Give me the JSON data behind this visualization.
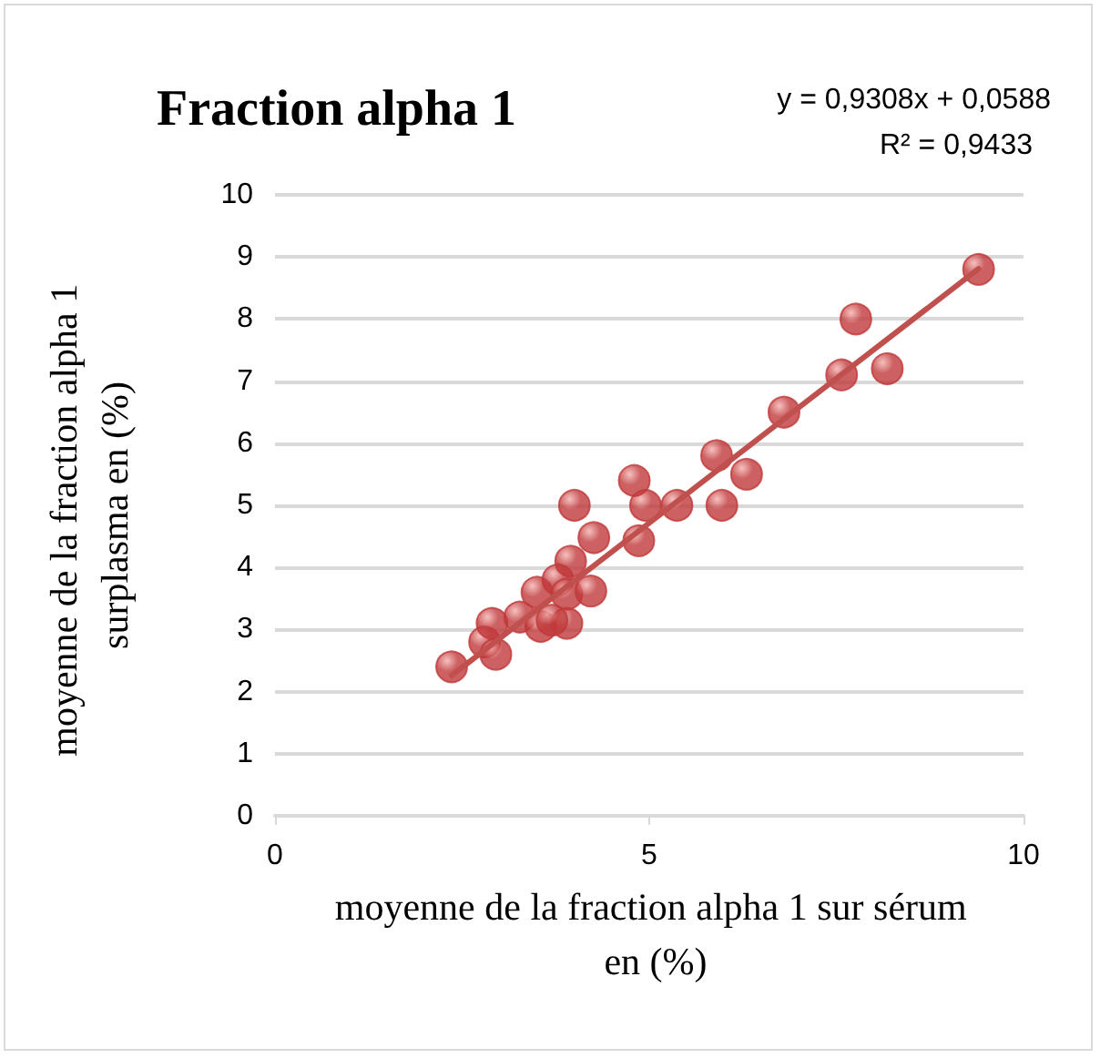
{
  "chart_data": {
    "type": "scatter",
    "title": "Fraction alpha 1",
    "xlabel": "moyenne de la fraction alpha 1 sur sérum en (%)",
    "ylabel": "moyenne de la fraction alpha 1 surplasma en (%)",
    "annotations": [
      "y = 0,9308x + 0,0588",
      "R² = 0,9433"
    ],
    "series": [
      {
        "color": "#c0393b",
        "marker": "circle",
        "x": [
          2.36,
          2.8,
          2.95,
          2.9,
          3.27,
          3.55,
          3.9,
          3.7,
          3.5,
          3.78,
          3.9,
          4.22,
          3.95,
          4.26,
          4.86,
          4.0,
          4.95,
          5.37,
          5.97,
          4.8,
          5.9,
          6.3,
          6.8,
          7.57,
          8.18,
          7.76,
          9.4
        ],
        "values": [
          2.4,
          2.8,
          2.6,
          3.1,
          3.2,
          3.05,
          3.1,
          3.15,
          3.6,
          3.8,
          3.57,
          3.62,
          4.1,
          4.48,
          4.43,
          5.0,
          5.0,
          5.0,
          5.0,
          5.4,
          5.8,
          5.5,
          6.5,
          7.1,
          7.2,
          8.0,
          8.8
        ]
      },
      {
        "type": "line",
        "color": "#c0504d",
        "marker": "none",
        "x": [
          2.36,
          9.4
        ],
        "values": [
          2.26,
          8.81
        ]
      }
    ],
    "xlim": [
      0,
      10
    ],
    "xticks": [
      0,
      5,
      10
    ],
    "ylim": [
      0,
      10
    ],
    "yticks": [
      0,
      1,
      2,
      3,
      4,
      5,
      6,
      7,
      8,
      9,
      10
    ],
    "grid": "y"
  }
}
